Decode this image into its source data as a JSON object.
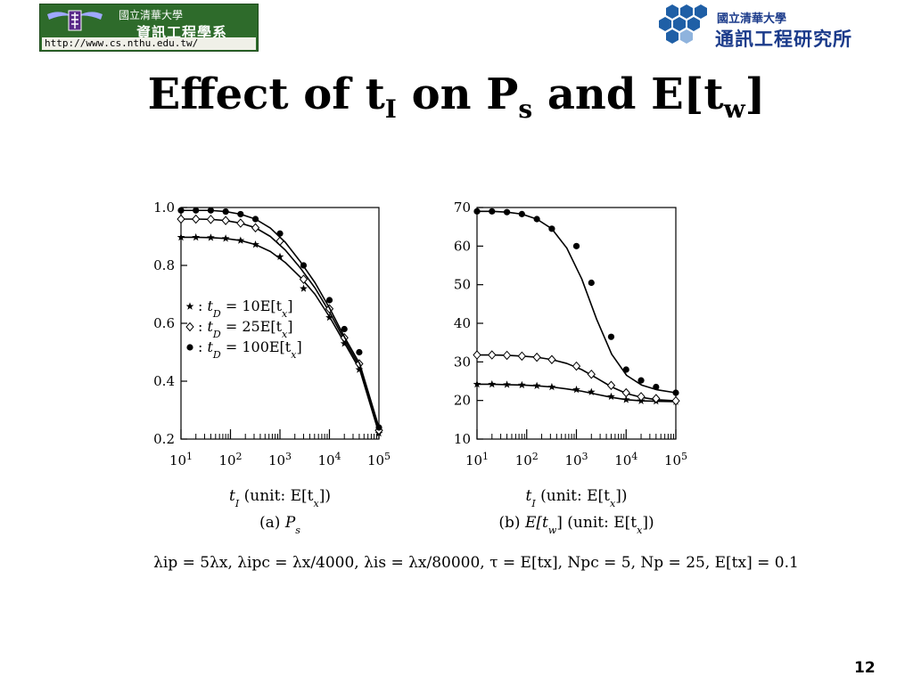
{
  "header": {
    "left_logo": {
      "university": "國立清華大學",
      "department": "資訊工程學系",
      "url": "http://www.cs.nthu.edu.tw/"
    },
    "right_logo": {
      "university": "國立清華大學",
      "institute": "通訊工程研究所"
    }
  },
  "title": {
    "part1": "Effect of t",
    "sub1": "I",
    "part2": " on P",
    "sub2": "s",
    "part3": " and E[t",
    "sub3": "w",
    "part4": "]"
  },
  "chart_data": [
    {
      "type": "line",
      "caption_prefix": "(a) ",
      "caption_math": "P",
      "caption_sub": "s",
      "xlabel_math": "t",
      "xlabel_sub": "I",
      "xlabel_unit": " (unit: E[t",
      "xlabel_unit_sub": "x",
      "xlabel_close": "])",
      "xscale": "log",
      "xlim": [
        10,
        100000
      ],
      "xtick_base": "10",
      "xtick_exponents": [
        "1",
        "2",
        "3",
        "4",
        "5"
      ],
      "ylim": [
        0.2,
        1.0
      ],
      "yticks": [
        "0.2",
        "0.4",
        "0.6",
        "0.8",
        "1.0"
      ],
      "legend_position": "center-left",
      "x": [
        10,
        20,
        40,
        80,
        160,
        320,
        640,
        1280,
        2560,
        5120,
        10240,
        20480,
        40960,
        100000
      ],
      "series": [
        {
          "name_math": "t",
          "name_sub": "D",
          "name_rest": " = 10E[t",
          "name_sub2": "x",
          "name_close": "]",
          "marker": "star",
          "values": [
            0.897,
            0.897,
            0.896,
            0.893,
            0.886,
            0.872,
            0.848,
            0.81,
            0.76,
            0.7,
            0.62,
            0.53,
            0.44,
            0.22
          ],
          "marker_x": [
            10,
            20,
            40,
            80,
            160,
            320,
            1000,
            3000,
            10000,
            20000,
            40000,
            100000
          ],
          "marker_values": [
            0.897,
            0.897,
            0.896,
            0.893,
            0.886,
            0.872,
            0.83,
            0.72,
            0.62,
            0.53,
            0.44,
            0.22
          ]
        },
        {
          "name_math": "t",
          "name_sub": "D",
          "name_rest": " = 25E[t",
          "name_sub2": "x",
          "name_close": "]",
          "marker": "diamond",
          "values": [
            0.96,
            0.96,
            0.959,
            0.955,
            0.946,
            0.93,
            0.9,
            0.853,
            0.792,
            0.722,
            0.636,
            0.54,
            0.45,
            0.23
          ],
          "marker_x": [
            10,
            20,
            40,
            80,
            160,
            320,
            1000,
            3000,
            10000,
            20000,
            40000,
            100000
          ],
          "marker_values": [
            0.96,
            0.96,
            0.959,
            0.955,
            0.946,
            0.93,
            0.884,
            0.752,
            0.65,
            0.55,
            0.46,
            0.23
          ]
        },
        {
          "name_math": "t",
          "name_sub": "D",
          "name_rest": " = 100E[t",
          "name_sub2": "x",
          "name_close": "]",
          "marker": "circle",
          "values": [
            0.99,
            0.99,
            0.99,
            0.986,
            0.977,
            0.96,
            0.929,
            0.88,
            0.814,
            0.74,
            0.65,
            0.55,
            0.46,
            0.24
          ],
          "marker_x": [
            10,
            20,
            40,
            80,
            160,
            320,
            1000,
            3000,
            10000,
            20000,
            40000,
            100000
          ],
          "marker_values": [
            0.99,
            0.99,
            0.99,
            0.986,
            0.977,
            0.96,
            0.91,
            0.8,
            0.68,
            0.58,
            0.5,
            0.24
          ]
        }
      ]
    },
    {
      "type": "line",
      "caption_prefix": "(b) ",
      "caption_math": "E[t",
      "caption_sub": "w",
      "caption_rest": "] (unit: E[t",
      "caption_sub2": "x",
      "caption_close": "])",
      "xlabel_math": "t",
      "xlabel_sub": "I",
      "xlabel_unit": " (unit: E[t",
      "xlabel_unit_sub": "x",
      "xlabel_close": "])",
      "xscale": "log",
      "xlim": [
        10,
        100000
      ],
      "xtick_base": "10",
      "xtick_exponents": [
        "1",
        "2",
        "3",
        "4",
        "5"
      ],
      "ylim": [
        10,
        70
      ],
      "yticks": [
        "10",
        "20",
        "30",
        "40",
        "50",
        "60",
        "70"
      ],
      "x": [
        10,
        20,
        40,
        80,
        160,
        320,
        640,
        1280,
        2560,
        5120,
        10240,
        20480,
        40960,
        100000
      ],
      "series": [
        {
          "marker": "star",
          "values": [
            24.2,
            24.2,
            24.1,
            24.0,
            23.8,
            23.5,
            23.0,
            22.4,
            21.6,
            20.8,
            20.2,
            19.9,
            19.8,
            19.7
          ],
          "marker_x": [
            10,
            20,
            40,
            80,
            160,
            320,
            1000,
            2000,
            5000,
            10000,
            20000,
            40000,
            100000
          ],
          "marker_values": [
            24.2,
            24.2,
            24.1,
            24.0,
            23.8,
            23.5,
            22.8,
            22.2,
            21.0,
            20.2,
            19.9,
            19.8,
            19.7
          ]
        },
        {
          "marker": "diamond",
          "values": [
            31.8,
            31.8,
            31.7,
            31.5,
            31.2,
            30.6,
            29.6,
            28.0,
            25.8,
            23.5,
            21.8,
            20.8,
            20.2,
            19.9
          ],
          "marker_x": [
            10,
            20,
            40,
            80,
            160,
            320,
            1000,
            2000,
            5000,
            10000,
            20000,
            40000,
            100000
          ],
          "marker_values": [
            31.8,
            31.8,
            31.7,
            31.5,
            31.2,
            30.6,
            28.9,
            26.8,
            23.9,
            22.0,
            21.0,
            20.5,
            19.9
          ]
        },
        {
          "marker": "circle",
          "values": [
            69.0,
            69.0,
            68.8,
            68.3,
            67.0,
            64.5,
            59.5,
            51.5,
            41.0,
            32.0,
            26.5,
            24.0,
            22.8,
            22.0
          ],
          "marker_x": [
            10,
            20,
            40,
            80,
            160,
            320,
            1000,
            2000,
            5000,
            10000,
            20000,
            40000,
            100000
          ],
          "marker_values": [
            69.0,
            69.0,
            68.8,
            68.3,
            67.0,
            64.5,
            60.0,
            50.5,
            36.5,
            28.0,
            25.2,
            23.5,
            22.0
          ]
        }
      ]
    }
  ],
  "params": "λip = 5λx, λipc = λx/4000, λis = λx/80000, τ = E[tx], Npc = 5, Np = 25, E[tx] = 0.1",
  "page_number": "12"
}
